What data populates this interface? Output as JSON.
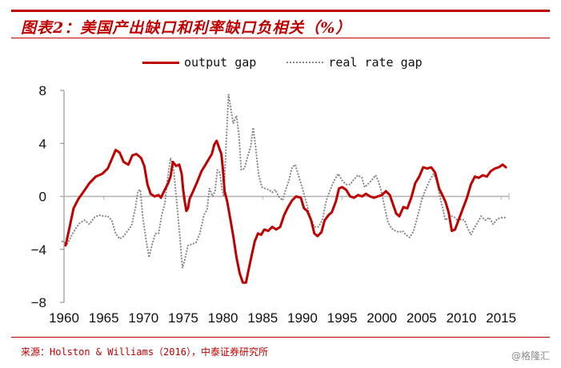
{
  "header": {
    "title": "图表2：美国产出缺口和利率缺口负相关（%）"
  },
  "legend": {
    "items": [
      {
        "label": "output gap",
        "style": "solid",
        "color": "#c00000"
      },
      {
        "label": "real rate gap",
        "style": "dotted",
        "color": "#888888"
      }
    ]
  },
  "footer": {
    "source": "来源：Holston & Williams（2016），中泰证券研究所",
    "watermark": "@格隆汇"
  },
  "chart_data": {
    "type": "line",
    "title": "图表2：美国产出缺口和利率缺口负相关（%）",
    "xlabel": "",
    "ylabel": "%",
    "xlim": [
      1960,
      2016
    ],
    "ylim": [
      -8,
      8
    ],
    "x_ticks": [
      1960,
      1965,
      1970,
      1975,
      1980,
      1985,
      1990,
      1995,
      2000,
      2005,
      2010,
      2015
    ],
    "y_ticks": [
      8,
      4,
      0,
      -4,
      -8
    ],
    "y_tick_labels": [
      "8",
      "4",
      "0",
      "−4",
      "−8"
    ],
    "grid": false,
    "zero_line": true,
    "legend_position": "top-center",
    "series": [
      {
        "name": "output gap",
        "color": "#c00000",
        "style": "solid",
        "points": [
          [
            1960.2,
            -3.7
          ],
          [
            1960.6,
            -2.6
          ],
          [
            1961.2,
            -0.9
          ],
          [
            1961.8,
            -0.2
          ],
          [
            1962.4,
            0.3
          ],
          [
            1963.2,
            1.0
          ],
          [
            1964.0,
            1.5
          ],
          [
            1964.8,
            1.7
          ],
          [
            1965.5,
            2.1
          ],
          [
            1966.0,
            2.8
          ],
          [
            1966.5,
            3.5
          ],
          [
            1967.0,
            3.3
          ],
          [
            1967.5,
            2.6
          ],
          [
            1968.1,
            2.4
          ],
          [
            1968.6,
            3.1
          ],
          [
            1969.1,
            3.2
          ],
          [
            1969.7,
            2.9
          ],
          [
            1970.1,
            2.3
          ],
          [
            1970.5,
            0.9
          ],
          [
            1970.9,
            0.2
          ],
          [
            1971.4,
            0.0
          ],
          [
            1971.9,
            0.1
          ],
          [
            1972.2,
            -0.1
          ],
          [
            1972.6,
            0.4
          ],
          [
            1973.1,
            1.0
          ],
          [
            1973.4,
            1.5
          ],
          [
            1973.7,
            2.6
          ],
          [
            1974.1,
            2.3
          ],
          [
            1974.5,
            2.4
          ],
          [
            1974.8,
            1.7
          ],
          [
            1975.0,
            0.5
          ],
          [
            1975.2,
            -0.4
          ],
          [
            1975.4,
            -1.1
          ],
          [
            1975.6,
            -0.9
          ],
          [
            1975.8,
            -0.2
          ],
          [
            1976.1,
            0.2
          ],
          [
            1976.7,
            1.0
          ],
          [
            1977.3,
            1.9
          ],
          [
            1977.8,
            2.4
          ],
          [
            1978.3,
            2.9
          ],
          [
            1978.6,
            3.2
          ],
          [
            1978.9,
            3.9
          ],
          [
            1979.2,
            4.2
          ],
          [
            1979.5,
            3.7
          ],
          [
            1979.8,
            3.2
          ],
          [
            1980.0,
            2.0
          ],
          [
            1980.2,
            0.4
          ],
          [
            1980.5,
            -0.3
          ],
          [
            1980.9,
            -1.6
          ],
          [
            1981.3,
            -3.0
          ],
          [
            1981.7,
            -4.6
          ],
          [
            1982.1,
            -5.8
          ],
          [
            1982.5,
            -6.5
          ],
          [
            1982.9,
            -6.5
          ],
          [
            1983.2,
            -5.6
          ],
          [
            1983.6,
            -4.5
          ],
          [
            1984.0,
            -3.4
          ],
          [
            1984.4,
            -2.8
          ],
          [
            1984.8,
            -2.9
          ],
          [
            1985.2,
            -2.5
          ],
          [
            1985.7,
            -2.6
          ],
          [
            1986.2,
            -2.3
          ],
          [
            1986.7,
            -2.5
          ],
          [
            1987.2,
            -2.3
          ],
          [
            1987.7,
            -1.4
          ],
          [
            1988.2,
            -0.8
          ],
          [
            1988.7,
            -0.3
          ],
          [
            1989.2,
            0.0
          ],
          [
            1989.8,
            -0.1
          ],
          [
            1990.2,
            -0.9
          ],
          [
            1990.6,
            -1.1
          ],
          [
            1991.1,
            -1.8
          ],
          [
            1991.5,
            -2.8
          ],
          [
            1991.9,
            -3.0
          ],
          [
            1992.4,
            -2.7
          ],
          [
            1992.8,
            -1.8
          ],
          [
            1993.3,
            -1.4
          ],
          [
            1993.7,
            -1.2
          ],
          [
            1994.2,
            -0.4
          ],
          [
            1994.6,
            0.6
          ],
          [
            1995.0,
            0.7
          ],
          [
            1995.5,
            0.5
          ],
          [
            1996.0,
            0.0
          ],
          [
            1996.5,
            -0.1
          ],
          [
            1997.0,
            0.1
          ],
          [
            1997.5,
            0.0
          ],
          [
            1998.0,
            0.2
          ],
          [
            1998.5,
            0.0
          ],
          [
            1999.0,
            -0.1
          ],
          [
            1999.5,
            0.0
          ],
          [
            2000.0,
            0.1
          ],
          [
            2000.5,
            0.4
          ],
          [
            2001.0,
            0.1
          ],
          [
            2001.4,
            -0.6
          ],
          [
            2001.8,
            -1.3
          ],
          [
            2002.2,
            -1.5
          ],
          [
            2002.7,
            -0.8
          ],
          [
            2003.2,
            -0.9
          ],
          [
            2003.7,
            -0.1
          ],
          [
            2004.2,
            1.0
          ],
          [
            2004.7,
            1.5
          ],
          [
            2005.2,
            2.2
          ],
          [
            2005.7,
            2.1
          ],
          [
            2006.2,
            2.2
          ],
          [
            2006.7,
            1.8
          ],
          [
            2007.2,
            0.6
          ],
          [
            2007.6,
            0.1
          ],
          [
            2008.0,
            -0.4
          ],
          [
            2008.4,
            -1.2
          ],
          [
            2008.8,
            -2.6
          ],
          [
            2009.2,
            -2.5
          ],
          [
            2009.7,
            -1.7
          ],
          [
            2010.2,
            -0.9
          ],
          [
            2010.7,
            -0.1
          ],
          [
            2011.2,
            0.9
          ],
          [
            2011.7,
            1.5
          ],
          [
            2012.2,
            1.4
          ],
          [
            2012.7,
            1.6
          ],
          [
            2013.2,
            1.5
          ],
          [
            2013.7,
            1.9
          ],
          [
            2014.2,
            2.1
          ],
          [
            2014.7,
            2.2
          ],
          [
            2015.2,
            2.4
          ],
          [
            2015.6,
            2.2
          ]
        ]
      },
      {
        "name": "real rate gap",
        "color": "#888888",
        "style": "dotted",
        "points": [
          [
            1959.8,
            -3.4
          ],
          [
            1960.4,
            -3.6
          ],
          [
            1961.0,
            -2.9
          ],
          [
            1961.5,
            -2.4
          ],
          [
            1962.0,
            -2.0
          ],
          [
            1962.6,
            -1.8
          ],
          [
            1963.2,
            -2.1
          ],
          [
            1963.8,
            -1.6
          ],
          [
            1964.4,
            -1.4
          ],
          [
            1965.0,
            -1.5
          ],
          [
            1965.5,
            -1.5
          ],
          [
            1966.0,
            -1.8
          ],
          [
            1966.5,
            -2.8
          ],
          [
            1967.0,
            -3.2
          ],
          [
            1967.5,
            -3.0
          ],
          [
            1968.0,
            -2.6
          ],
          [
            1968.5,
            -2.2
          ],
          [
            1969.0,
            -0.8
          ],
          [
            1969.3,
            0.4
          ],
          [
            1969.6,
            0.5
          ],
          [
            1969.9,
            -1.5
          ],
          [
            1970.3,
            -3.2
          ],
          [
            1970.7,
            -4.6
          ],
          [
            1971.1,
            -3.6
          ],
          [
            1971.5,
            -2.8
          ],
          [
            1971.9,
            -2.8
          ],
          [
            1972.3,
            -1.4
          ],
          [
            1972.7,
            -0.5
          ],
          [
            1973.0,
            1.2
          ],
          [
            1973.4,
            2.9
          ],
          [
            1973.8,
            2.0
          ],
          [
            1974.1,
            0.1
          ],
          [
            1974.5,
            -2.5
          ],
          [
            1974.9,
            -5.4
          ],
          [
            1975.2,
            -4.8
          ],
          [
            1975.6,
            -3.7
          ],
          [
            1976.1,
            -3.6
          ],
          [
            1976.6,
            -3.5
          ],
          [
            1977.1,
            -2.8
          ],
          [
            1977.6,
            -1.4
          ],
          [
            1978.0,
            -1.0
          ],
          [
            1978.3,
            0.6
          ],
          [
            1978.7,
            0.0
          ],
          [
            1979.0,
            0.4
          ],
          [
            1979.3,
            2.0
          ],
          [
            1979.6,
            1.8
          ],
          [
            1979.9,
            0.5
          ],
          [
            1980.1,
            0.0
          ],
          [
            1980.4,
            4.0
          ],
          [
            1980.7,
            7.7
          ],
          [
            1981.0,
            6.6
          ],
          [
            1981.3,
            5.5
          ],
          [
            1981.7,
            6.1
          ],
          [
            1982.0,
            4.7
          ],
          [
            1982.3,
            2.0
          ],
          [
            1982.7,
            2.1
          ],
          [
            1983.1,
            3.0
          ],
          [
            1983.5,
            3.8
          ],
          [
            1983.8,
            5.2
          ],
          [
            1984.1,
            3.8
          ],
          [
            1984.5,
            1.6
          ],
          [
            1984.9,
            0.7
          ],
          [
            1985.3,
            0.6
          ],
          [
            1985.8,
            0.5
          ],
          [
            1986.2,
            0.3
          ],
          [
            1986.6,
            0.5
          ],
          [
            1987.0,
            0.0
          ],
          [
            1987.5,
            -0.3
          ],
          [
            1987.9,
            0.5
          ],
          [
            1988.3,
            1.2
          ],
          [
            1988.7,
            2.2
          ],
          [
            1989.1,
            2.4
          ],
          [
            1989.5,
            1.6
          ],
          [
            1990.0,
            0.6
          ],
          [
            1990.5,
            -0.5
          ],
          [
            1991.0,
            -1.6
          ],
          [
            1991.5,
            -2.3
          ],
          [
            1992.0,
            -2.3
          ],
          [
            1992.5,
            -1.8
          ],
          [
            1993.0,
            -0.3
          ],
          [
            1993.5,
            0.5
          ],
          [
            1994.0,
            1.2
          ],
          [
            1994.5,
            1.7
          ],
          [
            1995.0,
            1.2
          ],
          [
            1995.5,
            0.9
          ],
          [
            1996.0,
            0.9
          ],
          [
            1996.5,
            1.3
          ],
          [
            1997.0,
            1.6
          ],
          [
            1997.5,
            1.4
          ],
          [
            1997.8,
            0.7
          ],
          [
            1998.2,
            0.9
          ],
          [
            1998.7,
            1.2
          ],
          [
            1999.2,
            1.6
          ],
          [
            1999.6,
            1.1
          ],
          [
            2000.0,
            0.2
          ],
          [
            2000.4,
            -1.0
          ],
          [
            2000.8,
            -2.0
          ],
          [
            2001.2,
            -2.4
          ],
          [
            2001.7,
            -2.6
          ],
          [
            2002.2,
            -2.7
          ],
          [
            2002.6,
            -2.6
          ],
          [
            2003.0,
            -2.9
          ],
          [
            2003.5,
            -3.1
          ],
          [
            2004.0,
            -2.6
          ],
          [
            2004.5,
            -1.5
          ],
          [
            2005.0,
            -0.3
          ],
          [
            2005.5,
            0.5
          ],
          [
            2006.0,
            1.2
          ],
          [
            2006.5,
            1.7
          ],
          [
            2006.9,
            1.2
          ],
          [
            2007.3,
            0.0
          ],
          [
            2007.7,
            -1.0
          ],
          [
            2008.0,
            -1.8
          ],
          [
            2008.4,
            -1.6
          ],
          [
            2008.8,
            -1.5
          ],
          [
            2009.2,
            -1.6
          ],
          [
            2009.6,
            -1.9
          ],
          [
            2010.0,
            -1.7
          ],
          [
            2010.4,
            -1.8
          ],
          [
            2010.8,
            -2.4
          ],
          [
            2011.2,
            -2.9
          ],
          [
            2011.6,
            -2.4
          ],
          [
            2012.0,
            -2.0
          ],
          [
            2012.5,
            -1.5
          ],
          [
            2013.0,
            -1.8
          ],
          [
            2013.5,
            -1.6
          ],
          [
            2014.0,
            -2.1
          ],
          [
            2014.5,
            -1.7
          ],
          [
            2015.0,
            -1.6
          ],
          [
            2015.6,
            -1.6
          ]
        ]
      }
    ]
  }
}
